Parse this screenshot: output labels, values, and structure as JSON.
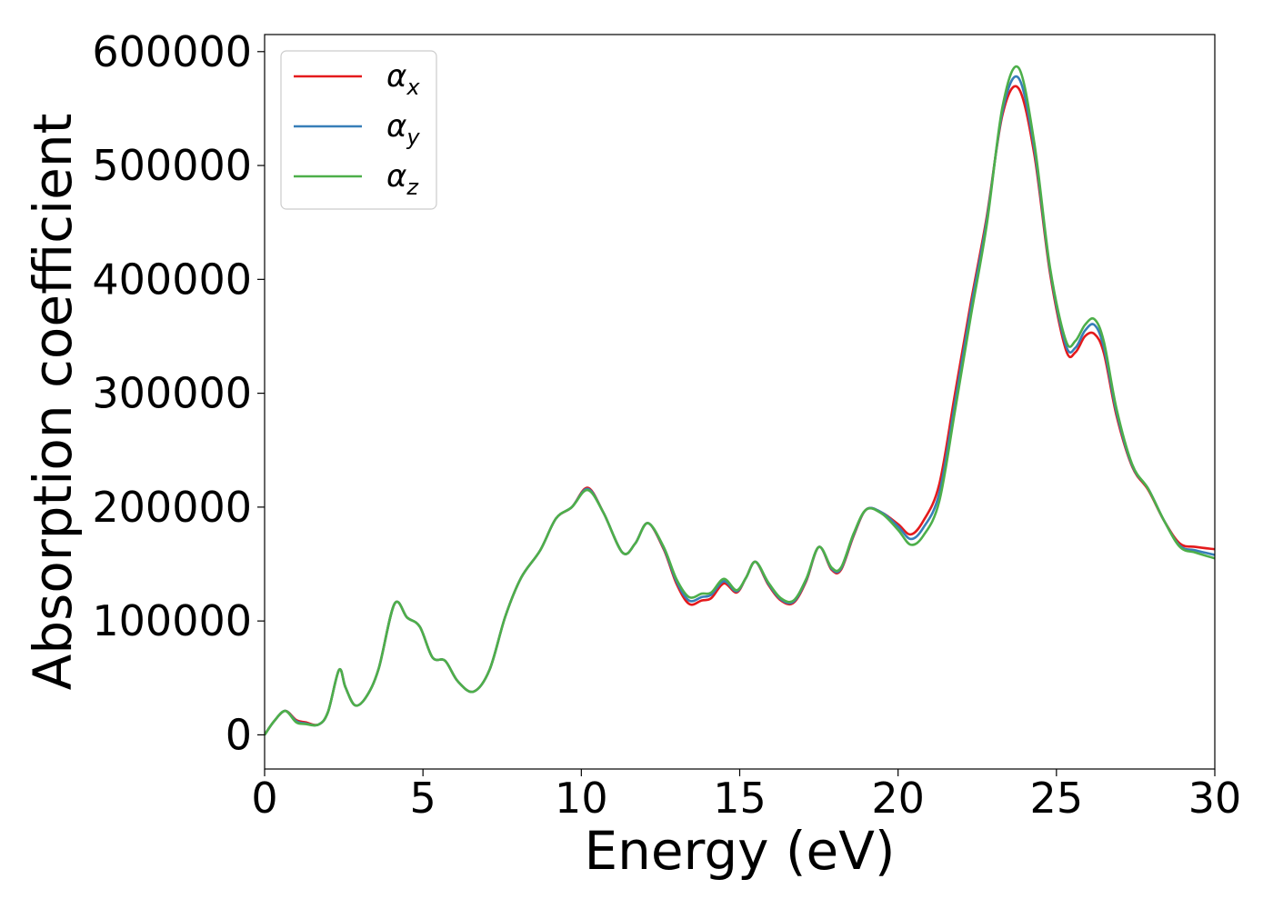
{
  "chart_data": {
    "type": "line",
    "title": "",
    "xlabel": "Energy (eV)",
    "ylabel": "Absorption coefficient",
    "xlim": [
      0,
      30
    ],
    "ylim": [
      -30000,
      615000
    ],
    "xticks": [
      "0",
      "5",
      "10",
      "15",
      "20",
      "25",
      "30"
    ],
    "yticks": [
      "0",
      "100000",
      "200000",
      "300000",
      "400000",
      "500000",
      "600000"
    ],
    "grid": false,
    "legend_position": "top-left",
    "colors": {
      "alpha_x": "#e41a1c",
      "alpha_y": "#377eb8",
      "alpha_z": "#4daf4a"
    },
    "series": [
      {
        "name": "αx",
        "symbol": "α",
        "subscript": "x",
        "color": "#e41a1c",
        "x": [
          0,
          0.3,
          0.65,
          1.0,
          1.3,
          1.7,
          2.0,
          2.35,
          2.55,
          2.85,
          3.2,
          3.6,
          4.1,
          4.5,
          4.9,
          5.3,
          5.7,
          6.1,
          6.6,
          7.1,
          7.6,
          8.1,
          8.7,
          9.2,
          9.7,
          10.2,
          10.7,
          11.3,
          11.7,
          12.1,
          12.6,
          13.0,
          13.4,
          13.8,
          14.1,
          14.5,
          14.9,
          15.2,
          15.5,
          15.9,
          16.3,
          16.7,
          17.1,
          17.5,
          17.9,
          18.2,
          18.6,
          19.0,
          19.5,
          20.0,
          20.4,
          20.8,
          21.3,
          21.8,
          22.3,
          22.8,
          23.3,
          23.8,
          24.3,
          24.8,
          25.3,
          25.6,
          25.9,
          26.2,
          26.5,
          26.9,
          27.4,
          27.9,
          28.4,
          28.9,
          29.4,
          30.0
        ],
        "y": [
          0,
          12000,
          21000,
          13000,
          11000,
          9000,
          20000,
          57000,
          42000,
          26000,
          33000,
          58000,
          115000,
          103000,
          95000,
          68000,
          65000,
          47000,
          38000,
          57000,
          104000,
          138000,
          162000,
          190000,
          200000,
          217000,
          195000,
          160000,
          168000,
          186000,
          163000,
          133000,
          115000,
          118000,
          120000,
          133000,
          125000,
          138000,
          152000,
          132000,
          118000,
          116000,
          135000,
          165000,
          145000,
          145000,
          175000,
          198000,
          195000,
          185000,
          176000,
          188000,
          220000,
          300000,
          380000,
          455000,
          545000,
          568000,
          510000,
          405000,
          338000,
          336000,
          350000,
          352000,
          335000,
          280000,
          235000,
          215000,
          188000,
          168000,
          165000,
          163000
        ]
      },
      {
        "name": "αy",
        "symbol": "α",
        "subscript": "y",
        "color": "#377eb8",
        "x": [
          0,
          0.3,
          0.65,
          1.0,
          1.3,
          1.7,
          2.0,
          2.35,
          2.55,
          2.85,
          3.2,
          3.6,
          4.1,
          4.5,
          4.9,
          5.3,
          5.7,
          6.1,
          6.6,
          7.1,
          7.6,
          8.1,
          8.7,
          9.2,
          9.7,
          10.2,
          10.7,
          11.3,
          11.7,
          12.1,
          12.6,
          13.0,
          13.4,
          13.8,
          14.1,
          14.5,
          14.9,
          15.2,
          15.5,
          15.9,
          16.3,
          16.7,
          17.1,
          17.5,
          17.9,
          18.2,
          18.6,
          19.0,
          19.5,
          20.0,
          20.4,
          20.8,
          21.3,
          21.8,
          22.3,
          22.8,
          23.3,
          23.8,
          24.3,
          24.8,
          25.3,
          25.6,
          25.9,
          26.2,
          26.5,
          26.9,
          27.4,
          27.9,
          28.4,
          28.9,
          29.4,
          30.0
        ],
        "y": [
          0,
          12000,
          21000,
          12000,
          10000,
          9000,
          20000,
          57000,
          42000,
          26000,
          33000,
          58000,
          115000,
          103000,
          95000,
          68000,
          65000,
          47000,
          38000,
          57000,
          104000,
          138000,
          162000,
          190000,
          200000,
          216000,
          195000,
          160000,
          168000,
          186000,
          164000,
          135000,
          118000,
          121000,
          123000,
          135000,
          126000,
          138000,
          152000,
          133000,
          119000,
          117000,
          136000,
          165000,
          146000,
          146000,
          176000,
          198000,
          195000,
          183000,
          172000,
          182000,
          212000,
          292000,
          375000,
          452000,
          548000,
          577000,
          515000,
          408000,
          342000,
          340000,
          355000,
          360000,
          340000,
          283000,
          236000,
          216000,
          188000,
          166000,
          162000,
          158000
        ]
      },
      {
        "name": "αz",
        "symbol": "α",
        "subscript": "z",
        "color": "#4daf4a",
        "x": [
          0,
          0.3,
          0.65,
          1.0,
          1.3,
          1.7,
          2.0,
          2.35,
          2.55,
          2.85,
          3.2,
          3.6,
          4.1,
          4.5,
          4.9,
          5.3,
          5.7,
          6.1,
          6.6,
          7.1,
          7.6,
          8.1,
          8.7,
          9.2,
          9.7,
          10.2,
          10.7,
          11.3,
          11.7,
          12.1,
          12.6,
          13.0,
          13.4,
          13.8,
          14.1,
          14.5,
          14.9,
          15.2,
          15.5,
          15.9,
          16.3,
          16.7,
          17.1,
          17.5,
          17.9,
          18.2,
          18.6,
          19.0,
          19.5,
          20.0,
          20.4,
          20.8,
          21.3,
          21.8,
          22.3,
          22.8,
          23.3,
          23.8,
          24.3,
          24.8,
          25.3,
          25.6,
          25.9,
          26.2,
          26.5,
          26.9,
          27.4,
          27.9,
          28.4,
          28.9,
          29.4,
          30.0
        ],
        "y": [
          0,
          12000,
          21000,
          11000,
          9500,
          9000,
          20000,
          57000,
          42000,
          26000,
          33000,
          58000,
          115000,
          103000,
          95000,
          68000,
          65000,
          47000,
          38000,
          57000,
          104000,
          138000,
          162000,
          190000,
          200000,
          215000,
          195000,
          160000,
          168000,
          186000,
          165000,
          137000,
          121000,
          124000,
          125000,
          137000,
          127000,
          138000,
          152000,
          134000,
          120000,
          118000,
          137000,
          165000,
          147000,
          147000,
          177000,
          198000,
          194000,
          180000,
          167000,
          175000,
          205000,
          285000,
          368000,
          448000,
          552000,
          586000,
          520000,
          410000,
          346000,
          346000,
          360000,
          365000,
          345000,
          286000,
          237000,
          216000,
          188000,
          165000,
          160000,
          155000
        ]
      }
    ]
  }
}
